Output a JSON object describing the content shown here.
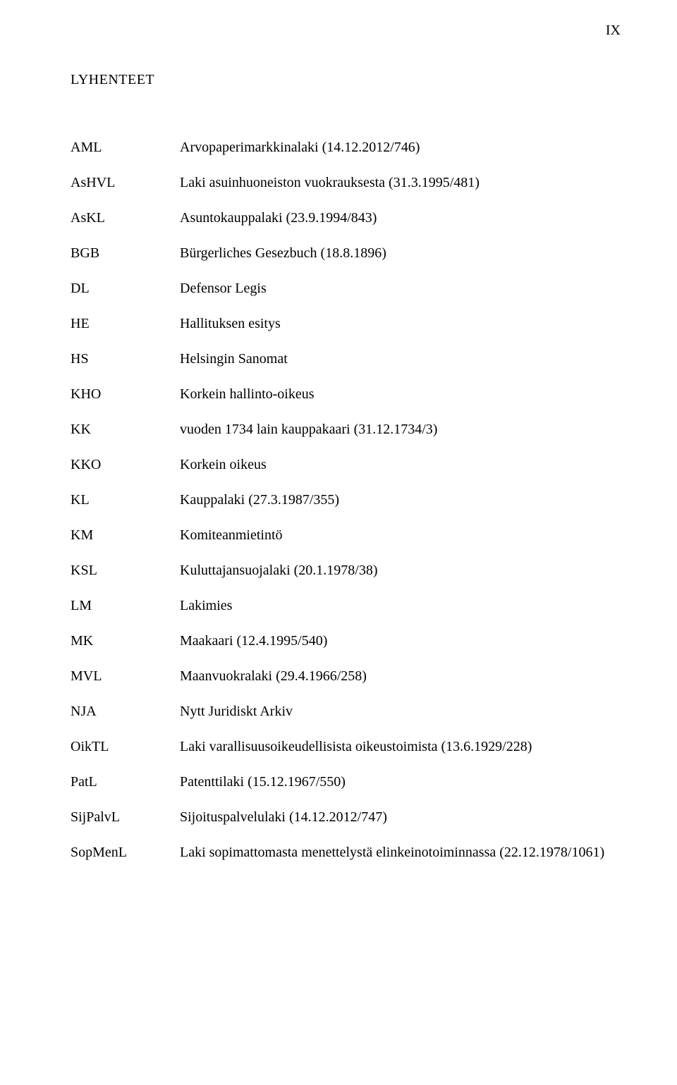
{
  "page_number": "IX",
  "heading": "LYHENTEET",
  "rows": [
    {
      "abbr": "AML",
      "desc": "Arvopaperimarkkinalaki (14.12.2012/746)"
    },
    {
      "abbr": "AsHVL",
      "desc": "Laki asuinhuoneiston vuokrauksesta (31.3.1995/481)"
    },
    {
      "abbr": "AsKL",
      "desc": "Asuntokauppalaki (23.9.1994/843)"
    },
    {
      "abbr": "BGB",
      "desc": "Bürgerliches Gesezbuch (18.8.1896)"
    },
    {
      "abbr": "DL",
      "desc": "Defensor Legis"
    },
    {
      "abbr": "HE",
      "desc": "Hallituksen esitys"
    },
    {
      "abbr": "HS",
      "desc": "Helsingin Sanomat"
    },
    {
      "abbr": "KHO",
      "desc": "Korkein hallinto-oikeus"
    },
    {
      "abbr": "KK",
      "desc": "vuoden 1734 lain kauppakaari (31.12.1734/3)"
    },
    {
      "abbr": "KKO",
      "desc": "Korkein oikeus"
    },
    {
      "abbr": "KL",
      "desc": "Kauppalaki (27.3.1987/355)"
    },
    {
      "abbr": "KM",
      "desc": "Komiteanmietintö"
    },
    {
      "abbr": "KSL",
      "desc": "Kuluttajansuojalaki (20.1.1978/38)"
    },
    {
      "abbr": "LM",
      "desc": "Lakimies"
    },
    {
      "abbr": "MK",
      "desc": "Maakaari (12.4.1995/540)"
    },
    {
      "abbr": "MVL",
      "desc": "Maanvuokralaki (29.4.1966/258)"
    },
    {
      "abbr": "NJA",
      "desc": "Nytt Juridiskt Arkiv"
    },
    {
      "abbr": "OikTL",
      "desc": "Laki varallisuusoikeudellisista oikeustoimista (13.6.1929/228)"
    },
    {
      "abbr": "PatL",
      "desc": "Patenttilaki (15.12.1967/550)"
    },
    {
      "abbr": "SijPalvL",
      "desc": "Sijoituspalvelulaki (14.12.2012/747)"
    },
    {
      "abbr": "SopMenL",
      "desc": "Laki sopimattomasta menettelystä elinkeinotoiminnassa (22.12.1978/1061)"
    }
  ]
}
